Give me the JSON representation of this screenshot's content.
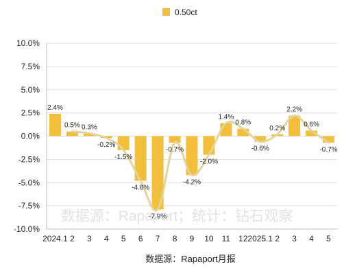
{
  "chart_data": {
    "type": "bar",
    "categories": [
      "2024.1",
      "2",
      "3",
      "4",
      "5",
      "6",
      "7",
      "8",
      "9",
      "10",
      "11",
      "12",
      "2025.1",
      "2",
      "3",
      "4",
      "5"
    ],
    "series": [
      {
        "name": "0.50ct",
        "values": [
          2.4,
          0.5,
          0.3,
          -0.2,
          -1.5,
          -4.8,
          -7.9,
          -0.7,
          -4.2,
          -2.0,
          1.4,
          0.8,
          -0.6,
          0.2,
          2.2,
          0.6,
          -0.7
        ],
        "data_labels": [
          "2.4%",
          "0.5%",
          "0.3%",
          "-0.2%",
          "-1.5%",
          "-4.8%",
          "-7.9%",
          "-0.7%",
          "-4.2%",
          "-2.0%",
          "1.4%",
          "0.8%",
          "-0.6%",
          "0.2%",
          "2.2%",
          "0.6%",
          "-0.7%"
        ],
        "color": "#F2BE3C"
      }
    ],
    "trend_line": {
      "color": "#E3D49A",
      "smooth": true
    },
    "ylim": [
      -10,
      10
    ],
    "y_ticks": [
      10,
      7.5,
      5,
      2.5,
      0,
      -2.5,
      -5,
      -7.5,
      -10
    ],
    "y_tick_labels": [
      "10.0%",
      "7.5%",
      "5.0%",
      "2.5%",
      "0.0%",
      "-2.5%",
      "-5.0%",
      "-7.5%",
      "-10.0%"
    ],
    "grid": true,
    "legend_position": "top-center",
    "title": "",
    "xlabel": "",
    "ylabel": ""
  },
  "watermark": "数据源：Rapaport；统计：钻石观察",
  "source_note": "数据源：Rapaport月报",
  "colors": {
    "grid": "#dddddd",
    "axis": "#bbbbbb",
    "text": "#222222"
  }
}
